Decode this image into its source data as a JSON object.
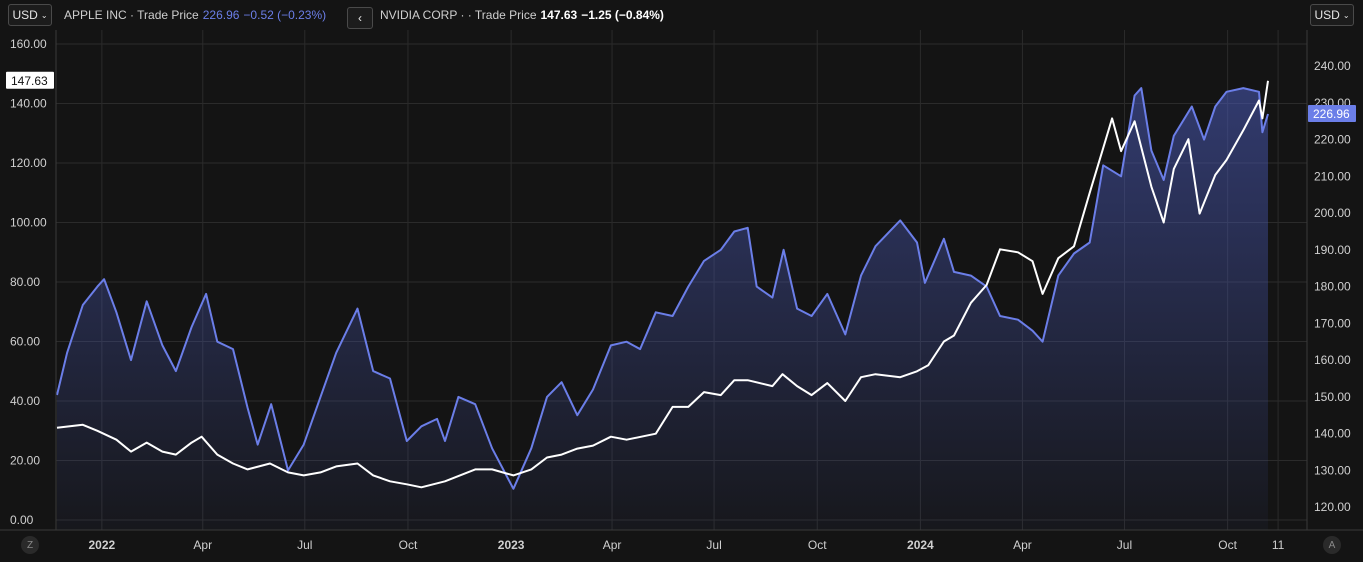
{
  "header": {
    "currency_left": "USD",
    "currency_right": "USD",
    "series1_name": "APPLE INC · Trade Price",
    "series1_price": "226.96",
    "series1_change": "−0.52 (−0.23%)",
    "nav_icon": "chevron-left-icon",
    "series2_name": "NVIDIA CORP · · Trade Price",
    "series2_price": "147.63",
    "series2_change": "−1.25 (−0.84%)"
  },
  "corners": {
    "left": "Z",
    "right": "A"
  },
  "colors": {
    "background": "#141414",
    "apple": "#6b7ee8",
    "nvidia": "#ffffff",
    "grid": "#2b2b2b"
  },
  "chart_data": {
    "type": "line",
    "title": "",
    "x_range": [
      "2021-11-22",
      "2024-11-06"
    ],
    "x_ticks": [
      {
        "label": "2022",
        "date": "2022-01-01"
      },
      {
        "label": "Apr",
        "date": "2022-04-01"
      },
      {
        "label": "Jul",
        "date": "2022-07-01"
      },
      {
        "label": "Oct",
        "date": "2022-10-01"
      },
      {
        "label": "2023",
        "date": "2023-01-01"
      },
      {
        "label": "Apr",
        "date": "2023-04-01"
      },
      {
        "label": "Jul",
        "date": "2023-07-01"
      },
      {
        "label": "Oct",
        "date": "2023-10-01"
      },
      {
        "label": "2024",
        "date": "2024-01-01"
      },
      {
        "label": "Apr",
        "date": "2024-04-01"
      },
      {
        "label": "Jul",
        "date": "2024-07-01"
      },
      {
        "label": "Oct",
        "date": "2024-10-01"
      },
      {
        "label": "11",
        "date": "2024-11-15"
      }
    ],
    "left_axis": {
      "series": "NVIDIA CORP",
      "ylim": [
        0,
        160
      ],
      "ticks": [
        "0.00",
        "20.00",
        "40.00",
        "60.00",
        "80.00",
        "100.00",
        "120.00",
        "140.00",
        "160.00"
      ],
      "last_value_label": "147.63"
    },
    "right_axis": {
      "series": "APPLE INC",
      "ylim": [
        116.5,
        246
      ],
      "ticks": [
        "120.00",
        "130.00",
        "140.00",
        "150.00",
        "160.00",
        "170.00",
        "180.00",
        "190.00",
        "200.00",
        "210.00",
        "220.00",
        "230.00",
        "240.00"
      ],
      "last_value_label": "226.96"
    },
    "series": [
      {
        "name": "APPLE INC",
        "axis": "right",
        "style": "area",
        "points": [
          [
            "2021-11-22",
            150.5
          ],
          [
            "2021-12-01",
            162
          ],
          [
            "2021-12-15",
            175
          ],
          [
            "2021-12-28",
            180
          ],
          [
            "2022-01-03",
            182
          ],
          [
            "2022-01-14",
            173
          ],
          [
            "2022-01-27",
            160
          ],
          [
            "2022-02-10",
            176
          ],
          [
            "2022-02-24",
            164
          ],
          [
            "2022-03-08",
            157
          ],
          [
            "2022-03-22",
            169
          ],
          [
            "2022-04-04",
            178
          ],
          [
            "2022-04-14",
            165
          ],
          [
            "2022-04-28",
            163
          ],
          [
            "2022-05-11",
            147
          ],
          [
            "2022-05-20",
            137
          ],
          [
            "2022-06-01",
            148
          ],
          [
            "2022-06-16",
            130
          ],
          [
            "2022-06-30",
            137
          ],
          [
            "2022-07-15",
            150
          ],
          [
            "2022-07-29",
            162
          ],
          [
            "2022-08-17",
            174
          ],
          [
            "2022-08-31",
            157
          ],
          [
            "2022-09-15",
            155
          ],
          [
            "2022-09-30",
            138
          ],
          [
            "2022-10-13",
            142
          ],
          [
            "2022-10-27",
            144
          ],
          [
            "2022-11-03",
            138
          ],
          [
            "2022-11-15",
            150
          ],
          [
            "2022-11-30",
            148
          ],
          [
            "2022-12-15",
            136
          ],
          [
            "2023-01-03",
            125
          ],
          [
            "2023-01-19",
            136
          ],
          [
            "2023-02-02",
            150
          ],
          [
            "2023-02-15",
            154
          ],
          [
            "2023-03-01",
            145
          ],
          [
            "2023-03-15",
            152
          ],
          [
            "2023-03-31",
            164
          ],
          [
            "2023-04-14",
            165
          ],
          [
            "2023-04-26",
            163
          ],
          [
            "2023-05-10",
            173
          ],
          [
            "2023-05-25",
            172
          ],
          [
            "2023-06-08",
            180
          ],
          [
            "2023-06-22",
            187
          ],
          [
            "2023-07-07",
            190
          ],
          [
            "2023-07-19",
            195
          ],
          [
            "2023-07-31",
            196
          ],
          [
            "2023-08-08",
            180
          ],
          [
            "2023-08-22",
            177
          ],
          [
            "2023-09-01",
            190
          ],
          [
            "2023-09-13",
            174
          ],
          [
            "2023-09-26",
            172
          ],
          [
            "2023-10-10",
            178
          ],
          [
            "2023-10-26",
            167
          ],
          [
            "2023-11-09",
            183
          ],
          [
            "2023-11-22",
            191
          ],
          [
            "2023-12-14",
            198
          ],
          [
            "2023-12-29",
            192
          ],
          [
            "2024-01-05",
            181
          ],
          [
            "2024-01-22",
            193
          ],
          [
            "2024-01-31",
            184
          ],
          [
            "2024-02-15",
            183
          ],
          [
            "2024-02-29",
            180
          ],
          [
            "2024-03-12",
            172
          ],
          [
            "2024-03-28",
            171
          ],
          [
            "2024-04-10",
            168
          ],
          [
            "2024-04-19",
            165
          ],
          [
            "2024-05-03",
            183
          ],
          [
            "2024-05-17",
            189
          ],
          [
            "2024-05-31",
            192
          ],
          [
            "2024-06-12",
            213
          ],
          [
            "2024-06-28",
            210
          ],
          [
            "2024-07-10",
            232
          ],
          [
            "2024-07-16",
            234
          ],
          [
            "2024-07-25",
            217
          ],
          [
            "2024-08-05",
            209
          ],
          [
            "2024-08-14",
            221
          ],
          [
            "2024-08-30",
            229
          ],
          [
            "2024-09-10",
            220
          ],
          [
            "2024-09-20",
            229
          ],
          [
            "2024-09-30",
            233
          ],
          [
            "2024-10-15",
            234
          ],
          [
            "2024-10-29",
            233
          ],
          [
            "2024-11-01",
            222
          ],
          [
            "2024-11-06",
            226.96
          ]
        ]
      },
      {
        "name": "NVIDIA CORP",
        "axis": "left",
        "style": "line",
        "points": [
          [
            "2021-11-22",
            31
          ],
          [
            "2021-12-15",
            32
          ],
          [
            "2021-12-28",
            30
          ],
          [
            "2022-01-14",
            27
          ],
          [
            "2022-01-27",
            23
          ],
          [
            "2022-02-10",
            26
          ],
          [
            "2022-02-24",
            23
          ],
          [
            "2022-03-08",
            22
          ],
          [
            "2022-03-22",
            26
          ],
          [
            "2022-03-31",
            28
          ],
          [
            "2022-04-14",
            22
          ],
          [
            "2022-04-28",
            19
          ],
          [
            "2022-05-11",
            17
          ],
          [
            "2022-05-31",
            19
          ],
          [
            "2022-06-16",
            16
          ],
          [
            "2022-06-30",
            15
          ],
          [
            "2022-07-15",
            16
          ],
          [
            "2022-07-29",
            18
          ],
          [
            "2022-08-17",
            19
          ],
          [
            "2022-08-31",
            15
          ],
          [
            "2022-09-15",
            13
          ],
          [
            "2022-09-30",
            12
          ],
          [
            "2022-10-13",
            11
          ],
          [
            "2022-11-03",
            13
          ],
          [
            "2022-11-30",
            17
          ],
          [
            "2022-12-15",
            17
          ],
          [
            "2023-01-03",
            15
          ],
          [
            "2023-01-19",
            17
          ],
          [
            "2023-02-02",
            21
          ],
          [
            "2023-02-15",
            22
          ],
          [
            "2023-03-01",
            24
          ],
          [
            "2023-03-15",
            25
          ],
          [
            "2023-03-31",
            28
          ],
          [
            "2023-04-14",
            27
          ],
          [
            "2023-05-10",
            29
          ],
          [
            "2023-05-25",
            38
          ],
          [
            "2023-06-08",
            38
          ],
          [
            "2023-06-22",
            43
          ],
          [
            "2023-07-07",
            42
          ],
          [
            "2023-07-19",
            47
          ],
          [
            "2023-07-31",
            47
          ],
          [
            "2023-08-22",
            45
          ],
          [
            "2023-08-31",
            49
          ],
          [
            "2023-09-13",
            45
          ],
          [
            "2023-09-26",
            42
          ],
          [
            "2023-10-10",
            46
          ],
          [
            "2023-10-26",
            40
          ],
          [
            "2023-11-09",
            48
          ],
          [
            "2023-11-22",
            49
          ],
          [
            "2023-12-14",
            48
          ],
          [
            "2023-12-29",
            50
          ],
          [
            "2024-01-08",
            52
          ],
          [
            "2024-01-22",
            60
          ],
          [
            "2024-01-31",
            62
          ],
          [
            "2024-02-15",
            73
          ],
          [
            "2024-02-29",
            79
          ],
          [
            "2024-03-12",
            91
          ],
          [
            "2024-03-28",
            90
          ],
          [
            "2024-04-10",
            87
          ],
          [
            "2024-04-19",
            76
          ],
          [
            "2024-05-03",
            88
          ],
          [
            "2024-05-17",
            92
          ],
          [
            "2024-05-31",
            110
          ],
          [
            "2024-06-12",
            125
          ],
          [
            "2024-06-20",
            135
          ],
          [
            "2024-06-28",
            124
          ],
          [
            "2024-07-10",
            134
          ],
          [
            "2024-07-25",
            112
          ],
          [
            "2024-08-05",
            100
          ],
          [
            "2024-08-14",
            118
          ],
          [
            "2024-08-27",
            128
          ],
          [
            "2024-09-06",
            103
          ],
          [
            "2024-09-20",
            116
          ],
          [
            "2024-09-30",
            121
          ],
          [
            "2024-10-15",
            131
          ],
          [
            "2024-10-29",
            141
          ],
          [
            "2024-11-01",
            135
          ],
          [
            "2024-11-06",
            147.63
          ]
        ]
      }
    ]
  }
}
